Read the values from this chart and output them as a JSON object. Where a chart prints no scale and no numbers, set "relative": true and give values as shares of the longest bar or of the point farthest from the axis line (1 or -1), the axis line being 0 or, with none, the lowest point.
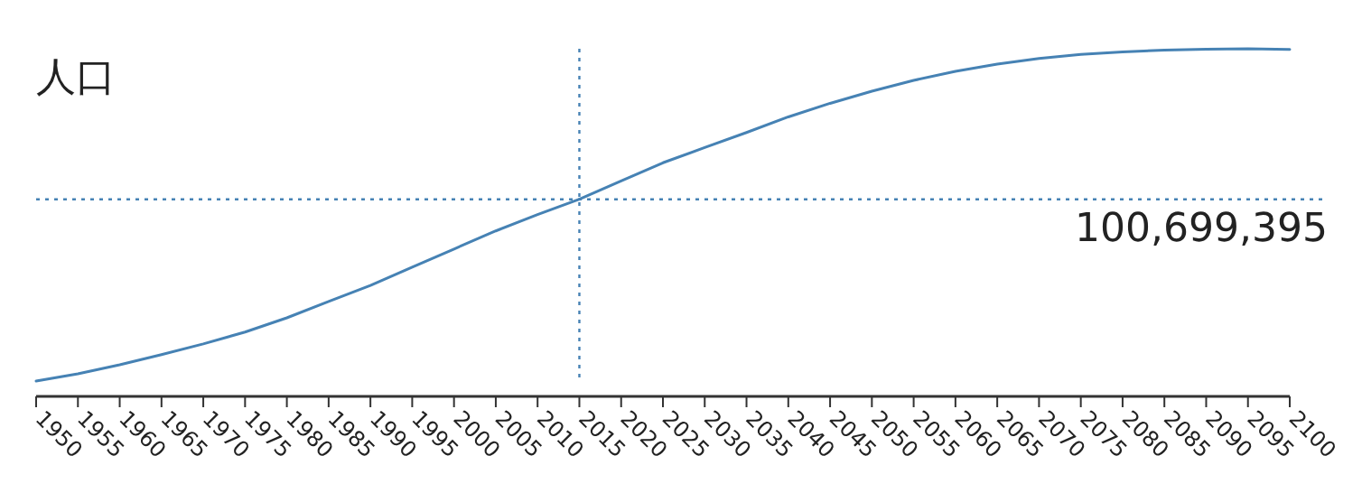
{
  "chart_data": {
    "type": "line",
    "title": "人口",
    "relative": true,
    "x": [
      1950,
      1955,
      1960,
      1965,
      1970,
      1975,
      1980,
      1985,
      1990,
      1995,
      2000,
      2005,
      2010,
      2015,
      2020,
      2025,
      2030,
      2035,
      2040,
      2045,
      2050,
      2055,
      2060,
      2065,
      2070,
      2075,
      2080,
      2085,
      2090,
      2095,
      2100
    ],
    "series": [
      {
        "color": "#4682b4",
        "values": [
          0.044,
          0.065,
          0.091,
          0.12,
          0.151,
          0.185,
          0.226,
          0.273,
          0.319,
          0.372,
          0.424,
          0.476,
          0.523,
          0.567,
          0.62,
          0.672,
          0.716,
          0.759,
          0.804,
          0.843,
          0.878,
          0.909,
          0.935,
          0.956,
          0.972,
          0.984,
          0.991,
          0.996,
          0.999,
          1.0,
          0.998
        ]
      }
    ],
    "xlim": [
      1950,
      2100
    ],
    "xticks": [
      1950,
      1955,
      1960,
      1965,
      1970,
      1975,
      1980,
      1985,
      1990,
      1995,
      2000,
      2005,
      2010,
      2015,
      2020,
      2025,
      2030,
      2035,
      2040,
      2045,
      2050,
      2055,
      2060,
      2065,
      2070,
      2075,
      2080,
      2085,
      2090,
      2095,
      2100
    ],
    "ref_lines": [
      {
        "axis": "x",
        "value": 2015,
        "color": "#4682b4",
        "line_style": "dotted"
      },
      {
        "axis": "y",
        "value": 0.567,
        "color": "#4682b4",
        "line_style": "dotted"
      }
    ],
    "annotations": [
      "100,699,395"
    ]
  }
}
